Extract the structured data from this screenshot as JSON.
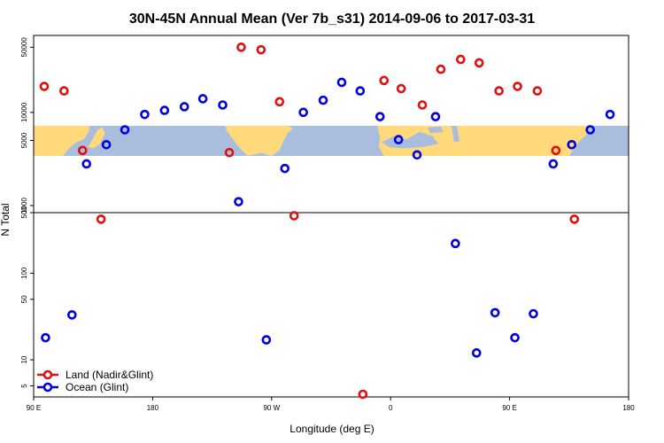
{
  "chart_data": {
    "type": "scatter",
    "title": "30N-45N Annual Mean (Ver 7b_s31)   2014-09-06 to 2017-03-31",
    "xlabel": "Longitude (deg E)",
    "ylabel": "N Total",
    "x_ticks": [
      {
        "value": 90,
        "label": "90 E"
      },
      {
        "value": 180,
        "label": "180"
      },
      {
        "value": 270,
        "label": "90 W"
      },
      {
        "value": 360,
        "label": "0"
      },
      {
        "value": 450,
        "label": "90 E"
      },
      {
        "value": 540,
        "label": "180"
      }
    ],
    "xlim": [
      90,
      540
    ],
    "upper_panel": {
      "scale": "log",
      "ylim": [
        1000,
        60000
      ],
      "y_ticks": [
        {
          "value": 50000,
          "label": "50000"
        },
        {
          "value": 10000,
          "label": "10000"
        },
        {
          "value": 5000,
          "label": "5000"
        },
        {
          "value": 1000,
          "label": "1000"
        }
      ],
      "map_band": {
        "lat_range": "30N-45N",
        "land_color": "#FFD97A",
        "ocean_color": "#A8BEDC"
      }
    },
    "lower_panel": {
      "scale": "log",
      "ylim": [
        4,
        500
      ],
      "y_ticks": [
        {
          "value": 500,
          "label": "500"
        },
        {
          "value": 100,
          "label": "100"
        },
        {
          "value": 50,
          "label": "50"
        },
        {
          "value": 10,
          "label": "10"
        },
        {
          "value": 5,
          "label": "5"
        }
      ]
    },
    "series": [
      {
        "name": "Land (Nadir&Glint)",
        "color": "#E01010",
        "points": [
          {
            "x": 98,
            "y": 19000
          },
          {
            "x": 113,
            "y": 17000
          },
          {
            "x": 127,
            "y": 3900
          },
          {
            "x": 141,
            "y": 420
          },
          {
            "x": 238,
            "y": 3700
          },
          {
            "x": 247,
            "y": 50000
          },
          {
            "x": 262,
            "y": 47000
          },
          {
            "x": 276,
            "y": 13000
          },
          {
            "x": 287,
            "y": 460
          },
          {
            "x": 339,
            "y": 4
          },
          {
            "x": 355,
            "y": 22000
          },
          {
            "x": 368,
            "y": 18000
          },
          {
            "x": 384,
            "y": 12000
          },
          {
            "x": 398,
            "y": 29000
          },
          {
            "x": 413,
            "y": 37000
          },
          {
            "x": 427,
            "y": 34000
          },
          {
            "x": 442,
            "y": 17000
          },
          {
            "x": 456,
            "y": 19000
          },
          {
            "x": 471,
            "y": 17000
          },
          {
            "x": 485,
            "y": 3900
          },
          {
            "x": 499,
            "y": 420
          }
        ]
      },
      {
        "name": "Ocean (Glint)",
        "color": "#0000E0",
        "points": [
          {
            "x": 99,
            "y": 18
          },
          {
            "x": 119,
            "y": 33
          },
          {
            "x": 130,
            "y": 2800
          },
          {
            "x": 145,
            "y": 4500
          },
          {
            "x": 159,
            "y": 6500
          },
          {
            "x": 174,
            "y": 9500
          },
          {
            "x": 189,
            "y": 10500
          },
          {
            "x": 204,
            "y": 11500
          },
          {
            "x": 218,
            "y": 14000
          },
          {
            "x": 233,
            "y": 12000
          },
          {
            "x": 245,
            "y": 1100
          },
          {
            "x": 266,
            "y": 17
          },
          {
            "x": 280,
            "y": 2500
          },
          {
            "x": 294,
            "y": 10000
          },
          {
            "x": 309,
            "y": 13500
          },
          {
            "x": 323,
            "y": 21000
          },
          {
            "x": 337,
            "y": 17000
          },
          {
            "x": 352,
            "y": 9000
          },
          {
            "x": 366,
            "y": 5100
          },
          {
            "x": 380,
            "y": 3500
          },
          {
            "x": 394,
            "y": 9000
          },
          {
            "x": 409,
            "y": 220
          },
          {
            "x": 425,
            "y": 12
          },
          {
            "x": 439,
            "y": 35
          },
          {
            "x": 454,
            "y": 18
          },
          {
            "x": 468,
            "y": 34
          },
          {
            "x": 483,
            "y": 2800
          },
          {
            "x": 497,
            "y": 4500
          },
          {
            "x": 511,
            "y": 6500
          },
          {
            "x": 526,
            "y": 9500
          }
        ]
      }
    ],
    "legend_position": "bottom-left"
  }
}
